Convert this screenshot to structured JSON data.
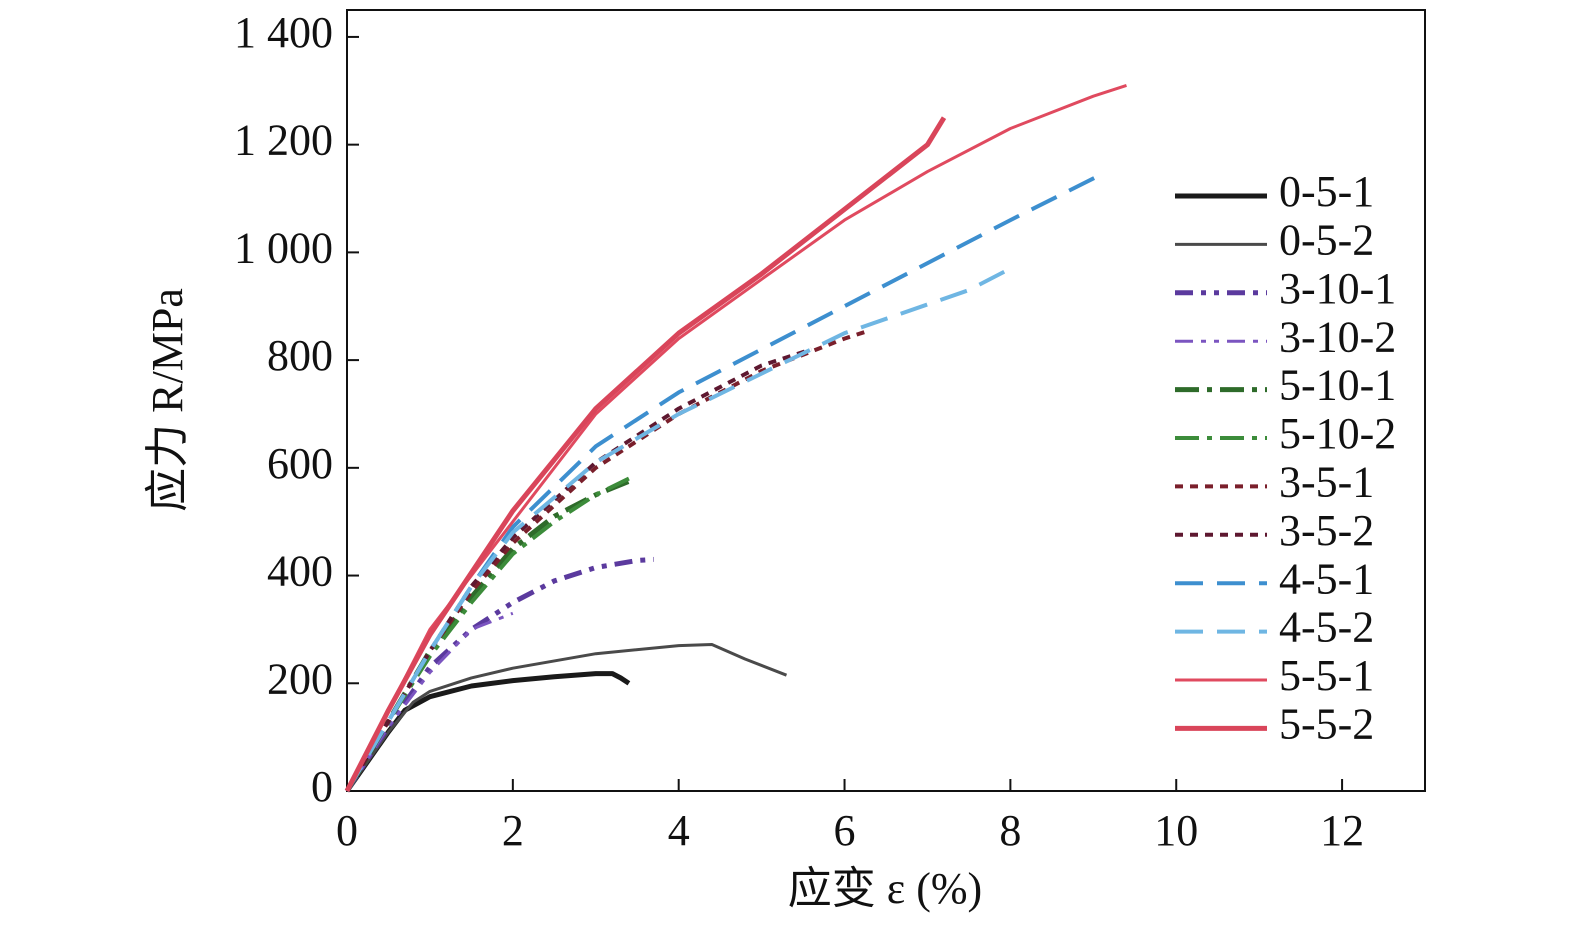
{
  "chart_data": {
    "type": "line",
    "xlabel": "应变 ε (%)",
    "ylabel": "应力 R/MPa",
    "xlim": [
      0,
      13
    ],
    "xticks": [
      0,
      2,
      4,
      6,
      8,
      10,
      12
    ],
    "ylim": [
      0,
      1450
    ],
    "yticks": [
      0,
      200,
      400,
      600,
      800,
      {
        "value": 1000,
        "label": "1 000"
      },
      {
        "value": 1200,
        "label": "1 200"
      },
      {
        "value": 1400,
        "label": "1 400"
      }
    ],
    "grid": false,
    "legend": "right",
    "series": [
      {
        "name": "0-5-1",
        "color": "#1a1a1a",
        "style": "solid",
        "width": 5,
        "x": [
          0,
          0.5,
          0.7,
          1,
          1.5,
          2,
          2.5,
          3,
          3.2,
          3.3,
          3.4
        ],
        "values": [
          0,
          110,
          150,
          175,
          195,
          205,
          212,
          218,
          218,
          210,
          200
        ]
      },
      {
        "name": "0-5-2",
        "color": "#4a4a4a",
        "style": "solid",
        "width": 3,
        "x": [
          0,
          0.5,
          0.8,
          1,
          1.5,
          2,
          3,
          4,
          4.4,
          4.8,
          5.3
        ],
        "values": [
          0,
          110,
          165,
          185,
          210,
          228,
          255,
          270,
          272,
          245,
          215
        ]
      },
      {
        "name": "3-10-1",
        "color": "#5b3a9e",
        "style": "dashdotdot",
        "width": 5,
        "x": [
          0,
          0.5,
          1,
          1.5,
          2,
          2.5,
          3,
          3.5,
          3.7
        ],
        "values": [
          0,
          120,
          230,
          300,
          350,
          390,
          415,
          428,
          430
        ]
      },
      {
        "name": "3-10-2",
        "color": "#7b55c0",
        "style": "dashdotdot",
        "width": 3,
        "x": [
          0,
          0.5,
          1,
          1.5,
          2
        ],
        "values": [
          0,
          120,
          220,
          300,
          330
        ]
      },
      {
        "name": "5-10-1",
        "color": "#2e6b2a",
        "style": "dashdot",
        "width": 5,
        "x": [
          0,
          0.5,
          1,
          1.5,
          2,
          2.5,
          3,
          3.4
        ],
        "values": [
          0,
          130,
          260,
          360,
          450,
          510,
          550,
          575
        ]
      },
      {
        "name": "5-10-2",
        "color": "#3c8c3a",
        "style": "dashdot",
        "width": 4,
        "x": [
          0,
          0.5,
          1,
          1.5,
          2,
          2.5,
          3,
          3.4
        ],
        "values": [
          0,
          130,
          250,
          350,
          440,
          500,
          550,
          580
        ]
      },
      {
        "name": "3-5-1",
        "color": "#7a1f2b",
        "style": "dot",
        "width": 4,
        "x": [
          0,
          0.5,
          1,
          1.5,
          2,
          3,
          4,
          5,
          6,
          6.3
        ],
        "values": [
          0,
          130,
          260,
          370,
          460,
          600,
          700,
          780,
          840,
          855
        ]
      },
      {
        "name": "3-5-2",
        "color": "#5e1830",
        "style": "dot",
        "width": 4,
        "x": [
          0,
          0.5,
          1,
          1.5,
          2,
          3,
          4,
          5,
          5.6
        ],
        "values": [
          0,
          130,
          260,
          380,
          470,
          610,
          710,
          790,
          820
        ]
      },
      {
        "name": "4-5-1",
        "color": "#3d8fcf",
        "style": "dash",
        "width": 4,
        "x": [
          0,
          0.5,
          1,
          1.5,
          2,
          3,
          4,
          6,
          8,
          9.1
        ],
        "values": [
          0,
          130,
          260,
          380,
          490,
          640,
          740,
          900,
          1060,
          1145
        ]
      },
      {
        "name": "4-5-2",
        "color": "#6fb6e3",
        "style": "dash",
        "width": 4,
        "x": [
          0,
          0.5,
          1,
          1.5,
          2,
          3,
          4,
          6,
          7.5,
          8
        ],
        "values": [
          0,
          130,
          260,
          380,
          480,
          610,
          700,
          850,
          930,
          970
        ]
      },
      {
        "name": "5-5-1",
        "color": "#e04a5f",
        "style": "solid",
        "width": 3,
        "x": [
          0,
          0.5,
          1,
          2,
          3,
          4,
          5,
          6,
          7,
          8,
          9,
          9.4
        ],
        "values": [
          0,
          150,
          300,
          500,
          700,
          840,
          950,
          1060,
          1150,
          1230,
          1290,
          1310
        ]
      },
      {
        "name": "5-5-2",
        "color": "#d9455a",
        "style": "solid",
        "width": 5,
        "x": [
          0,
          0.5,
          1,
          2,
          3,
          4,
          5,
          6,
          7,
          7.2
        ],
        "values": [
          0,
          150,
          290,
          520,
          710,
          850,
          960,
          1080,
          1200,
          1250
        ]
      }
    ]
  }
}
